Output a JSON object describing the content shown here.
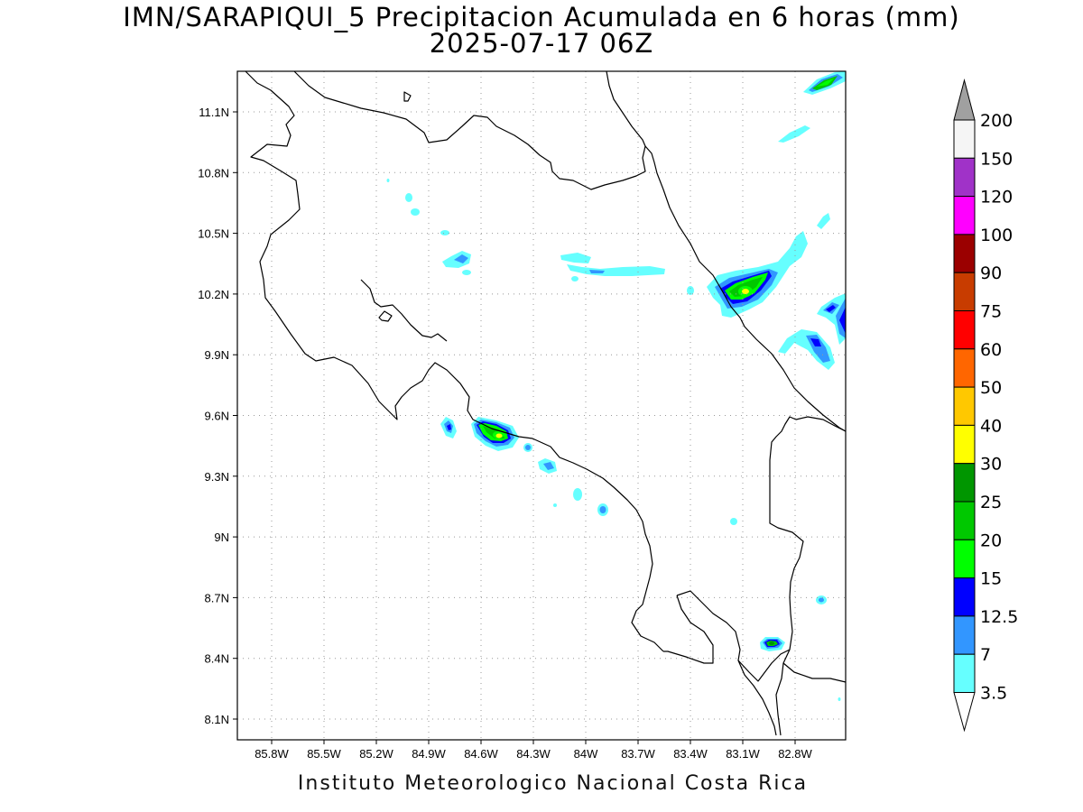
{
  "title_line1": "IMN/SARAPIQUI_5 Precipitacion Acumulada en 6 horas (mm)",
  "title_line2": "2025-07-17 06Z",
  "footer": "Instituto Meteorologico Nacional Costa Rica",
  "map": {
    "lon_ticks": [
      "85.8W",
      "85.5W",
      "85.2W",
      "84.9W",
      "84.6W",
      "84.3W",
      "84W",
      "83.7W",
      "83.4W",
      "83.1W",
      "82.8W"
    ],
    "lat_ticks": [
      "11.1N",
      "10.8N",
      "10.5N",
      "10.2N",
      "9.9N",
      "9.6N",
      "9.3N",
      "9N",
      "8.7N",
      "8.4N",
      "8.1N"
    ]
  },
  "colorbar": {
    "labels": [
      "200",
      "150",
      "120",
      "100",
      "90",
      "75",
      "60",
      "50",
      "40",
      "30",
      "25",
      "20",
      "15",
      "12.5",
      "7",
      "3.5"
    ],
    "colors": [
      "#ffffff",
      "#a0a0a0",
      "#f5f5f5",
      "#a032c8",
      "#ff00ff",
      "#9b0000",
      "#c83c00",
      "#ff0000",
      "#ff6600",
      "#ffc800",
      "#ffff00",
      "#009600",
      "#00c800",
      "#00ff00",
      "#0000ff",
      "#3296ff",
      "#66ffff"
    ]
  },
  "colors": {
    "c35": "#66ffff",
    "c7": "#3296ff",
    "c125": "#0000ff",
    "c15": "#00ff00",
    "c20": "#00c800",
    "c25": "#009600",
    "c30": "#ffff00"
  }
}
